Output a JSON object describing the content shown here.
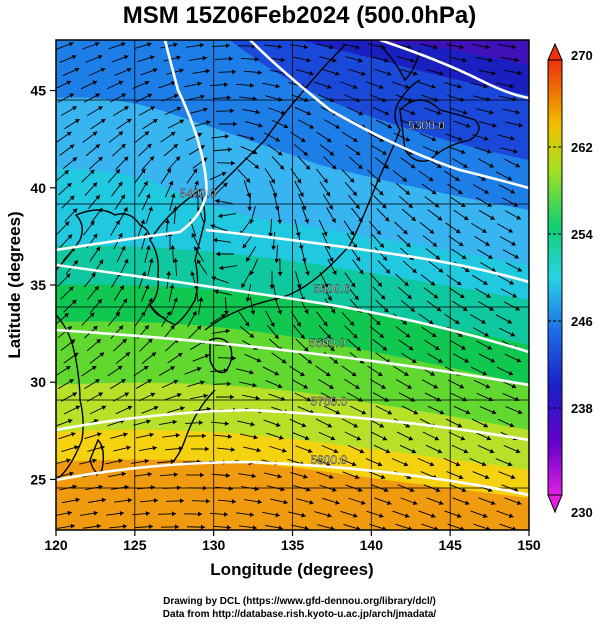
{
  "title": "MSM 15Z06Feb2024 (500.0hPa)",
  "map": {
    "xlabel": "Longitude (degrees)",
    "ylabel": "Latitude  (degrees)",
    "lon_range": [
      120,
      150
    ],
    "lat_range": [
      22.4,
      47.6
    ],
    "x_ticks": [
      {
        "value": 120,
        "label": "120"
      },
      {
        "value": 125,
        "label": "125"
      },
      {
        "value": 130,
        "label": "130"
      },
      {
        "value": 135,
        "label": "135"
      },
      {
        "value": 140,
        "label": "140"
      },
      {
        "value": 145,
        "label": "145"
      },
      {
        "value": 150,
        "label": "150"
      }
    ],
    "y_ticks": [
      {
        "value": 25,
        "label": "25"
      },
      {
        "value": 30,
        "label": "30"
      },
      {
        "value": 35,
        "label": "35"
      },
      {
        "value": 40,
        "label": "40"
      },
      {
        "value": 45,
        "label": "45"
      }
    ],
    "contour_labels": [
      {
        "text": "5300.0",
        "lon": 143.5,
        "lat": 43.0
      },
      {
        "text": "5400.0",
        "lon": 129.0,
        "lat": 39.5
      },
      {
        "text": "5500.0",
        "lon": 137.5,
        "lat": 34.6
      },
      {
        "text": "5600.0",
        "lon": 137.2,
        "lat": 31.8
      },
      {
        "text": "5700.0",
        "lon": 137.3,
        "lat": 28.8
      },
      {
        "text": "5800.0",
        "lon": 137.3,
        "lat": 25.8
      }
    ]
  },
  "colorbar": {
    "min": 230,
    "max": 270,
    "labels": [
      {
        "value": 270,
        "label": "270"
      },
      {
        "value": 262,
        "label": "262"
      },
      {
        "value": 254,
        "label": "254"
      },
      {
        "value": 246,
        "label": "246"
      },
      {
        "value": 238,
        "label": "238"
      },
      {
        "value": 230,
        "label": "230"
      }
    ]
  },
  "footer": {
    "line1": "Drawing by DCL (https://www.gfd-dennou.org/library/dcl/)",
    "line2": "Data from http://database.rish.kyoto-u.ac.jp/arch/jmadata/"
  }
}
